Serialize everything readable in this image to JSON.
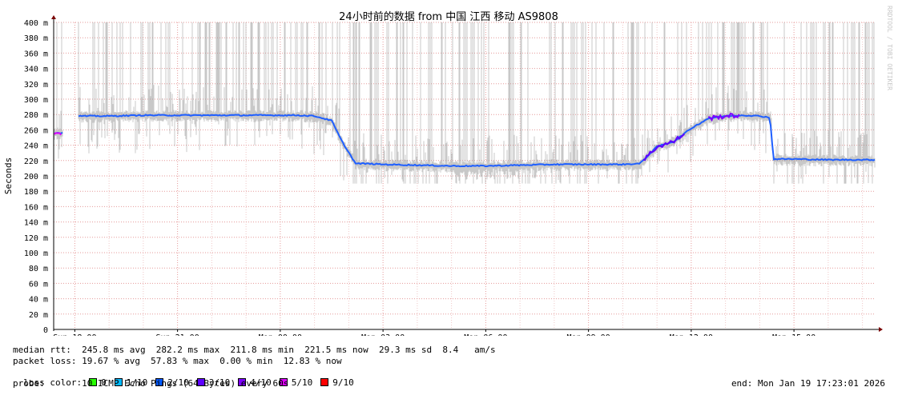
{
  "chart_data": {
    "type": "line",
    "title": "24小时前的数据 from  中国 江西 移动 AS9808",
    "ylabel": "Seconds",
    "watermark": "RRDTOOL / TOBI OETIKER",
    "ylim": [
      0,
      400
    ],
    "yticks": [
      0,
      20,
      40,
      60,
      80,
      100,
      120,
      140,
      160,
      180,
      200,
      220,
      240,
      260,
      280,
      300,
      320,
      340,
      360,
      380,
      400
    ],
    "ytick_labels": [
      "0",
      "20 m",
      "40 m",
      "60 m",
      "80 m",
      "100 m",
      "120 m",
      "140 m",
      "160 m",
      "180 m",
      "200 m",
      "220 m",
      "240 m",
      "260 m",
      "280 m",
      "300 m",
      "320 m",
      "340 m",
      "360 m",
      "380 m",
      "400 m"
    ],
    "xlim": [
      "Sun 17:23",
      "Mon 17:23"
    ],
    "x_hours_range": [
      17.383,
      41.383
    ],
    "xticks": [
      {
        "hour": 18,
        "label": "Sun 18:00"
      },
      {
        "hour": 21,
        "label": "Sun 21:00"
      },
      {
        "hour": 24,
        "label": "Mon 00:00"
      },
      {
        "hour": 27,
        "label": "Mon 03:00"
      },
      {
        "hour": 30,
        "label": "Mon 06:00"
      },
      {
        "hour": 33,
        "label": "Mon 09:00"
      },
      {
        "hour": 36,
        "label": "Mon 12:00"
      },
      {
        "hour": 39,
        "label": "Mon 15:00"
      }
    ],
    "grid": true,
    "median_series": {
      "name": "median rtt",
      "x_hours": [
        17.4,
        17.65,
        18.1,
        19.0,
        20.0,
        21.0,
        22.0,
        23.0,
        24.0,
        24.5,
        25.0,
        25.5,
        25.8,
        26.2,
        26.5,
        27.0,
        28.0,
        29.0,
        30.0,
        31.0,
        32.0,
        33.0,
        34.0,
        34.5,
        35.0,
        35.5,
        36.0,
        36.5,
        37.0,
        37.5,
        38.0,
        38.3,
        38.4,
        39.0,
        40.0,
        41.0,
        41.38
      ],
      "values": [
        256,
        256,
        278,
        278,
        279,
        279,
        279,
        279,
        279,
        279,
        278,
        272,
        245,
        216,
        216,
        215,
        214,
        213,
        213,
        214,
        215,
        215,
        215,
        216,
        238,
        245,
        262,
        275,
        278,
        279,
        278,
        276,
        222,
        222,
        221,
        221,
        221
      ]
    },
    "loss_periods": [
      {
        "x_hours": [
          17.4,
          17.65
        ],
        "loss": "5/10"
      },
      {
        "x_hours": [
          34.6,
          35.8
        ],
        "loss": "3/10"
      },
      {
        "x_hours": [
          36.5,
          37.4
        ],
        "loss": "4/10"
      }
    ],
    "smoke_spikes_to_top": "frequent spikes up to 400 ms across the period except 17.65–18.1",
    "smoke_dip_region": {
      "x_hours": [
        29.0,
        31.5
      ],
      "min_values": 195
    }
  },
  "stats": {
    "rtt_row": "median rtt:  245.8 ms avg  282.2 ms max  211.8 ms min  221.5 ms now  29.3 ms sd  8.4   am/s",
    "loss_row": "packet loss: 19.67 % avg  57.83 % max  0.00 % min  12.83 % now",
    "loss_color_label": "loss color:",
    "probe_row": "probe:       10 ICMP Echo Pings (64 Bytes) every 60s",
    "end_row": "end: Mon Jan 19 17:23:01 2026"
  },
  "loss_colors": [
    {
      "label": "0",
      "color": "#26ff00"
    },
    {
      "label": "1/10",
      "color": "#00b8ff"
    },
    {
      "label": "2/10",
      "color": "#0059ff"
    },
    {
      "label": "3/10",
      "color": "#5e00ff"
    },
    {
      "label": "4/10",
      "color": "#7e00ff"
    },
    {
      "label": "5/10",
      "color": "#dd00ff"
    },
    {
      "label": "9/10",
      "color": "#ff0000"
    }
  ]
}
